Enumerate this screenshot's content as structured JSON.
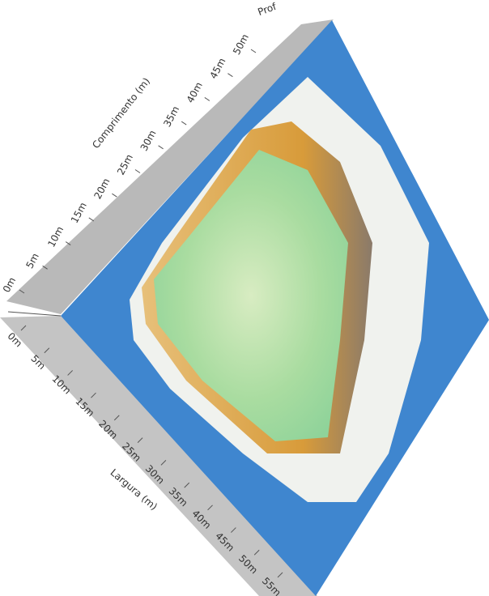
{
  "chart_data": {
    "type": "surface3d",
    "xlabel": "Largura (m)",
    "ylabel": "Comprimento (m)",
    "zlabel": "Prof",
    "xticks": [
      {
        "value": 0,
        "label": "0m"
      },
      {
        "value": 5,
        "label": "5m"
      },
      {
        "value": 10,
        "label": "10m"
      },
      {
        "value": 15,
        "label": "15m"
      },
      {
        "value": 20,
        "label": "20m"
      },
      {
        "value": 25,
        "label": "25m"
      },
      {
        "value": 30,
        "label": "30m"
      },
      {
        "value": 35,
        "label": "35m"
      },
      {
        "value": 40,
        "label": "40m"
      },
      {
        "value": 45,
        "label": "45m"
      },
      {
        "value": 50,
        "label": "50m"
      },
      {
        "value": 55,
        "label": "55m"
      }
    ],
    "yticks": [
      {
        "value": 0,
        "label": "0m"
      },
      {
        "value": 5,
        "label": "5m"
      },
      {
        "value": 10,
        "label": "10m"
      },
      {
        "value": 15,
        "label": "15m"
      },
      {
        "value": 20,
        "label": "20m"
      },
      {
        "value": 25,
        "label": "25m"
      },
      {
        "value": 30,
        "label": "30m"
      },
      {
        "value": 35,
        "label": "35m"
      },
      {
        "value": 40,
        "label": "40m"
      },
      {
        "value": 45,
        "label": "45m"
      },
      {
        "value": 50,
        "label": "50m"
      }
    ],
    "xlim": [
      0,
      55
    ],
    "ylim": [
      0,
      50
    ]
  }
}
